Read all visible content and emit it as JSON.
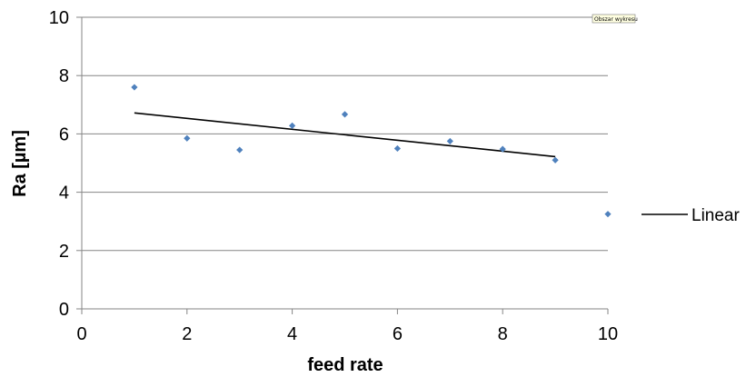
{
  "chart_data": {
    "type": "scatter",
    "title": "",
    "xlabel": "feed rate",
    "ylabel": "Ra [µm]",
    "xlim": [
      0,
      10
    ],
    "ylim": [
      0,
      10
    ],
    "xticks": [
      "0",
      "2",
      "4",
      "6",
      "8",
      "10"
    ],
    "yticks": [
      "0",
      "2",
      "4",
      "6",
      "8",
      "10"
    ],
    "grid": "horizontal major gridlines",
    "legend_position": "right",
    "series": [
      {
        "marker": "diamond",
        "color": "#4F81BD",
        "x": [
          1,
          2,
          3,
          4,
          5,
          6,
          7,
          8,
          9,
          10
        ],
        "y": [
          7.6,
          5.85,
          5.45,
          6.28,
          6.67,
          5.5,
          5.75,
          5.48,
          5.1,
          3.25
        ]
      }
    ],
    "trendline": {
      "name": "Linear",
      "type": "linear",
      "color": "#000000",
      "x": [
        1,
        9
      ],
      "y": [
        6.72,
        5.22
      ]
    }
  },
  "tooltip": {
    "text": "Obszar wykresu"
  }
}
